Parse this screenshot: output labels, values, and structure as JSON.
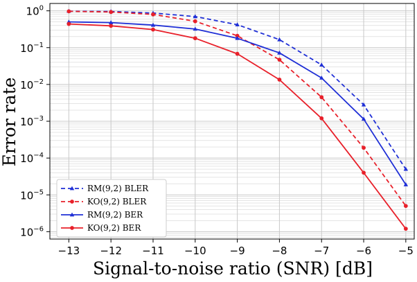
{
  "chart_data": {
    "type": "line",
    "title": "",
    "xlabel": "Signal-to-noise ratio (SNR) [dB]",
    "ylabel": "Error rate",
    "x": [
      -13,
      -12,
      -11,
      -10,
      -9,
      -8,
      -7,
      -6,
      -5
    ],
    "xlim": [
      -13.45,
      -4.8
    ],
    "ylim_exponent": [
      -6.2,
      0.2
    ],
    "yscale": "log",
    "grid": true,
    "legend_position": "lower-left",
    "x_ticks": [
      {
        "value": -13,
        "label": "−13"
      },
      {
        "value": -12,
        "label": "−12"
      },
      {
        "value": -11,
        "label": "−11"
      },
      {
        "value": -10,
        "label": "−10"
      },
      {
        "value": -9,
        "label": "−9"
      },
      {
        "value": -8,
        "label": "−8"
      },
      {
        "value": -7,
        "label": "−7"
      },
      {
        "value": -6,
        "label": "−6"
      },
      {
        "value": -5,
        "label": "−5"
      }
    ],
    "y_ticks": [
      {
        "exp": 0,
        "base": "10",
        "sup": "0"
      },
      {
        "exp": -1,
        "base": "10",
        "sup": "−1"
      },
      {
        "exp": -2,
        "base": "10",
        "sup": "−2"
      },
      {
        "exp": -3,
        "base": "10",
        "sup": "−3"
      },
      {
        "exp": -4,
        "base": "10",
        "sup": "−4"
      },
      {
        "exp": -5,
        "base": "10",
        "sup": "−5"
      },
      {
        "exp": -6,
        "base": "10",
        "sup": "−6"
      }
    ],
    "series": [
      {
        "name": "RM(9,2) BLER",
        "color": "#1f2fd6",
        "dash": true,
        "marker": "triangle",
        "values": [
          0.98,
          0.96,
          0.87,
          0.7,
          0.42,
          0.165,
          0.034,
          0.0028,
          5e-05
        ]
      },
      {
        "name": "KO(9,2) BLER",
        "color": "#e8202a",
        "dash": true,
        "marker": "circle",
        "values": [
          0.97,
          0.93,
          0.8,
          0.52,
          0.21,
          0.047,
          0.0045,
          0.00019,
          5e-06
        ]
      },
      {
        "name": "RM(9,2) BER",
        "color": "#1f2fd6",
        "dash": false,
        "marker": "triangle",
        "values": [
          0.5,
          0.48,
          0.41,
          0.32,
          0.18,
          0.072,
          0.015,
          0.00115,
          1.9e-05
        ]
      },
      {
        "name": "KO(9,2) BER",
        "color": "#e8202a",
        "dash": false,
        "marker": "circle",
        "values": [
          0.44,
          0.39,
          0.31,
          0.18,
          0.068,
          0.0135,
          0.0012,
          4e-05,
          1.2e-06
        ]
      }
    ]
  }
}
